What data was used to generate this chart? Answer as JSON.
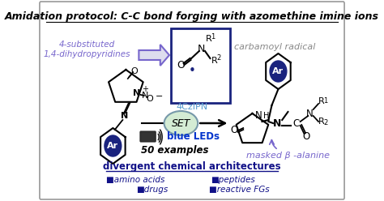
{
  "bg_color": "#ffffff",
  "border_color": "#999999",
  "title": "Amidation protocol: C-C bond forging with azomethine imine ions",
  "title_fontsize": 9.0,
  "title_color": "#000000",
  "label_4sub": "4-substituted\n1,4-dihydropyridines",
  "label_4sub_color": "#7766cc",
  "label_carbamoyl": "carbamoyl radical",
  "label_carbamoyl_color": "#888888",
  "label_4czipn": "4CzIPN",
  "label_4czipn_color": "#5599cc",
  "label_set": "SET",
  "label_blue_leds": "blue LEDs",
  "label_blue_leds_color": "#0033cc",
  "label_50ex": "50 examples",
  "label_masked": "masked β -alanine",
  "label_masked_color": "#7766cc",
  "label_div": "divergent chemical architectures",
  "label_div_color": "#111188",
  "label_items": [
    "■amino acids",
    "■peptides",
    "■drugs",
    "■reactive FGs"
  ],
  "label_items_color": "#111188",
  "box_color": "#1a237e",
  "ar_fill": "#1a237e",
  "ar_text": "#ffffff",
  "set_fill": "#d4ecd4",
  "set_edge": "#7799aa"
}
